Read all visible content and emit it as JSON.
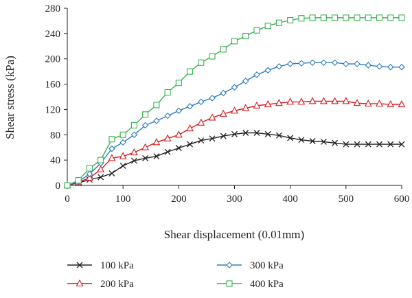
{
  "chart_data": {
    "type": "line",
    "xlabel": "Shear displacement (0.01mm)",
    "ylabel": "Shear stress (kPa)",
    "xlim": [
      0,
      600
    ],
    "ylim": [
      0,
      280
    ],
    "xticks": [
      0,
      100,
      200,
      300,
      400,
      500,
      600
    ],
    "yticks": [
      0,
      40,
      80,
      120,
      160,
      200,
      240,
      280
    ],
    "grid": false,
    "legend_position": "bottom",
    "series": [
      {
        "name": "100 kPa",
        "color": "#231f20",
        "marker": "x",
        "x": [
          0,
          20,
          40,
          60,
          80,
          100,
          120,
          140,
          160,
          180,
          200,
          220,
          240,
          260,
          280,
          300,
          320,
          340,
          360,
          380,
          400,
          420,
          440,
          460,
          480,
          500,
          520,
          540,
          560,
          580,
          600
        ],
        "y": [
          0,
          4,
          9,
          13,
          19,
          31,
          39,
          43,
          46,
          53,
          59,
          65,
          71,
          74,
          78,
          81,
          83,
          83,
          81,
          79,
          75,
          72,
          70,
          69,
          67,
          65,
          65,
          65,
          65,
          65,
          65
        ]
      },
      {
        "name": "200 kPa",
        "color": "#d7191c",
        "marker": "triangle",
        "x": [
          0,
          20,
          40,
          60,
          80,
          100,
          120,
          140,
          160,
          180,
          200,
          220,
          240,
          260,
          280,
          300,
          320,
          340,
          360,
          380,
          400,
          420,
          440,
          460,
          480,
          500,
          520,
          540,
          560,
          580,
          600
        ],
        "y": [
          0,
          5,
          12,
          25,
          43,
          46,
          52,
          60,
          68,
          74,
          80,
          90,
          99,
          107,
          113,
          118,
          122,
          126,
          128,
          130,
          132,
          132,
          133,
          133,
          133,
          133,
          130,
          129,
          129,
          128,
          128
        ]
      },
      {
        "name": "300 kPa",
        "color": "#2b7bc0",
        "marker": "diamond",
        "x": [
          0,
          20,
          40,
          60,
          80,
          100,
          120,
          140,
          160,
          180,
          200,
          220,
          240,
          260,
          280,
          300,
          320,
          340,
          360,
          380,
          400,
          420,
          440,
          460,
          480,
          500,
          520,
          540,
          560,
          580,
          600
        ],
        "y": [
          0,
          6,
          18,
          35,
          58,
          68,
          80,
          95,
          102,
          110,
          118,
          125,
          132,
          138,
          146,
          155,
          165,
          175,
          182,
          188,
          192,
          193,
          194,
          194,
          194,
          192,
          192,
          190,
          188,
          187,
          187
        ]
      },
      {
        "name": "400 kPa",
        "color": "#37b24d",
        "marker": "square",
        "x": [
          0,
          20,
          40,
          60,
          80,
          100,
          120,
          140,
          160,
          180,
          200,
          220,
          240,
          260,
          280,
          300,
          320,
          340,
          360,
          380,
          400,
          420,
          440,
          460,
          480,
          500,
          520,
          540,
          560,
          580,
          600
        ],
        "y": [
          0,
          8,
          27,
          40,
          73,
          80,
          95,
          112,
          127,
          147,
          162,
          180,
          194,
          204,
          215,
          228,
          236,
          245,
          252,
          257,
          261,
          264,
          265,
          265,
          265,
          265,
          265,
          265,
          265,
          265,
          265
        ]
      }
    ]
  }
}
